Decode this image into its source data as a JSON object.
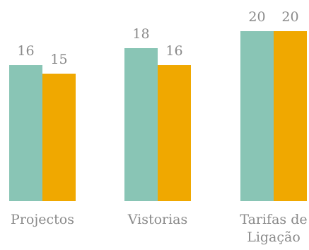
{
  "chart_data": {
    "type": "bar",
    "categories": [
      [
        "Projectos"
      ],
      [
        "Vistorias"
      ],
      [
        "Tarifas de",
        "Ligação"
      ]
    ],
    "series": [
      {
        "values": [
          16,
          18,
          20
        ]
      },
      {
        "values": [
          15,
          16,
          20
        ]
      }
    ],
    "ylim": [
      0,
      20
    ],
    "grid": false,
    "legend": "none",
    "colors": {
      "series_1": "#89c5b5",
      "series_2": "#f0a800",
      "label": "#8a8a8a"
    }
  }
}
